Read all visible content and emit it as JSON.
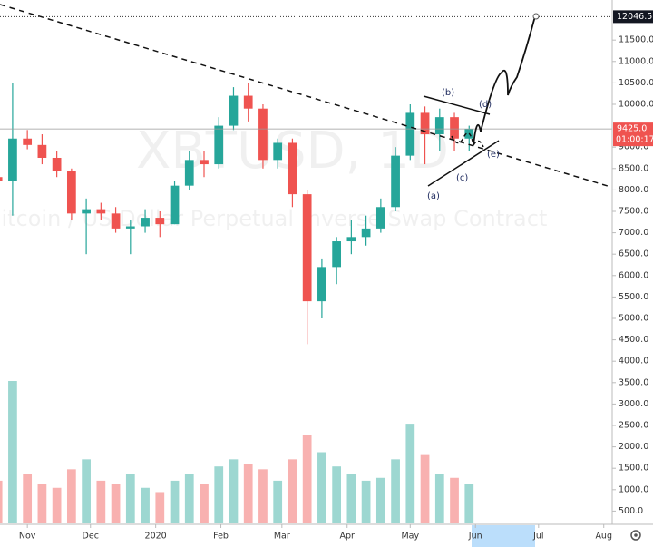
{
  "chart_data": {
    "type": "candlestick",
    "title": "XBTUSD, 1D",
    "subtitle": "Bitcoin / US Dollar Perpetual Inverse Swap Contract",
    "x": [
      -14,
      -7,
      0,
      7,
      14,
      21,
      28,
      35,
      42,
      49,
      56,
      63,
      70,
      77,
      84,
      91,
      98,
      105,
      112,
      119,
      126,
      133,
      140,
      147,
      154,
      161,
      168,
      175,
      182,
      189,
      196,
      203,
      210
    ],
    "open": [
      8300,
      8200,
      9200,
      9050,
      8750,
      8450,
      7450,
      7550,
      7450,
      7100,
      7150,
      7350,
      7200,
      8100,
      8700,
      8600,
      9500,
      10200,
      9900,
      8700,
      9100,
      7900,
      5400,
      6200,
      6800,
      6900,
      7100,
      7600,
      8800,
      9800,
      9300,
      9700,
      9200
    ],
    "high": [
      8400,
      10500,
      9400,
      9300,
      8900,
      8500,
      7800,
      7700,
      7600,
      7300,
      7550,
      7500,
      8200,
      8900,
      8900,
      9700,
      10400,
      10500,
      10000,
      9200,
      9200,
      8000,
      6400,
      6900,
      7300,
      7400,
      7800,
      9000,
      10000,
      9950,
      9900,
      9800,
      9500
    ],
    "low": [
      8000,
      7400,
      8950,
      8600,
      8300,
      7300,
      6500,
      7300,
      7000,
      6500,
      7000,
      6900,
      7200,
      8000,
      8300,
      8500,
      9400,
      9600,
      8500,
      8500,
      7600,
      4400,
      5000,
      5800,
      6500,
      6700,
      7000,
      7500,
      8700,
      8600,
      8900,
      8900,
      8900
    ],
    "close": [
      8200,
      9200,
      9050,
      8750,
      8450,
      7450,
      7550,
      7450,
      7100,
      7150,
      7350,
      7200,
      8100,
      8700,
      8600,
      9500,
      10200,
      9900,
      8700,
      9100,
      7900,
      5400,
      6200,
      6800,
      6900,
      7100,
      7600,
      8800,
      9800,
      9300,
      9700,
      9200,
      9425
    ],
    "volume": [
      30,
      100,
      35,
      28,
      25,
      38,
      45,
      30,
      28,
      35,
      25,
      22,
      30,
      35,
      28,
      40,
      45,
      42,
      38,
      30,
      45,
      62,
      50,
      40,
      35,
      30,
      32,
      45,
      70,
      48,
      35,
      32,
      28
    ],
    "volume_ylim": [
      0,
      100
    ],
    "up_color": "#26a69a",
    "down_color": "#ef5350",
    "xlim": [
      -13,
      278
    ],
    "xticks": [
      {
        "value": 0,
        "label": "Nov"
      },
      {
        "value": 30,
        "label": "Dec"
      },
      {
        "value": 61,
        "label": "2020"
      },
      {
        "value": 92,
        "label": "Feb"
      },
      {
        "value": 121,
        "label": "Mar"
      },
      {
        "value": 152,
        "label": "Apr"
      },
      {
        "value": 182,
        "label": "May"
      },
      {
        "value": 213,
        "label": "Jun"
      },
      {
        "value": 243,
        "label": "Jul"
      },
      {
        "value": 274,
        "label": "Aug"
      }
    ],
    "ylim": [
      212,
      12436
    ],
    "yticks": [
      {
        "value": 500,
        "label": "500.0"
      },
      {
        "value": 1000,
        "label": "1000.0"
      },
      {
        "value": 1500,
        "label": "1500.0"
      },
      {
        "value": 2000,
        "label": "2000.0"
      },
      {
        "value": 2500,
        "label": "2500.0"
      },
      {
        "value": 3000,
        "label": "3000.0"
      },
      {
        "value": 3500,
        "label": "3500.0"
      },
      {
        "value": 4000,
        "label": "4000.0"
      },
      {
        "value": 4500,
        "label": "4500.0"
      },
      {
        "value": 5000,
        "label": "5000.0"
      },
      {
        "value": 5500,
        "label": "5500.0"
      },
      {
        "value": 6000,
        "label": "6000.0"
      },
      {
        "value": 6500,
        "label": "6500.0"
      },
      {
        "value": 7000,
        "label": "7000.0"
      },
      {
        "value": 7500,
        "label": "7500.0"
      },
      {
        "value": 8000,
        "label": "8000.0"
      },
      {
        "value": 8500,
        "label": "8500.0"
      },
      {
        "value": 9000,
        "label": "9000.0"
      },
      {
        "value": 10000,
        "label": "10000.0"
      },
      {
        "value": 10500,
        "label": "10500.0"
      },
      {
        "value": 11000,
        "label": "11000.0"
      },
      {
        "value": 11500,
        "label": "11500.0"
      }
    ],
    "target": 12046.5,
    "last_price": {
      "value": 9425,
      "label": "9425.0"
    },
    "countdown": "01:00:17",
    "annotations": [
      "(a)",
      "(b)",
      "(c)",
      "(d)",
      "(e)"
    ],
    "grid": false
  }
}
